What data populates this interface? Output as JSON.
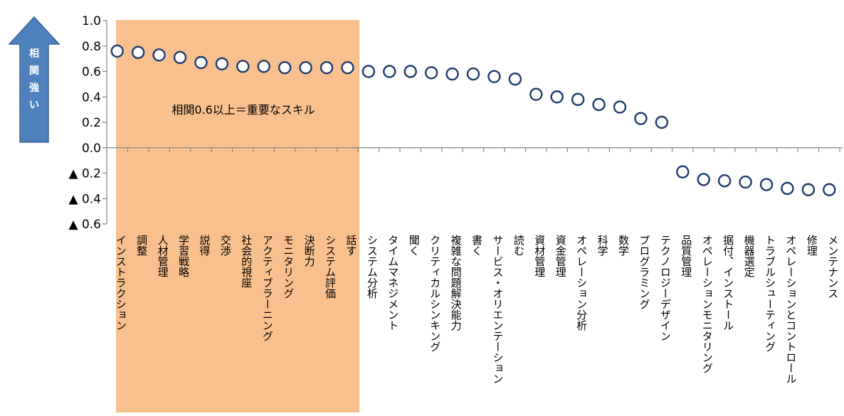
{
  "chart_data": {
    "type": "scatter",
    "title": "",
    "xlabel": "",
    "ylabel": "",
    "ylim": [
      -0.6,
      1.0
    ],
    "yticks": [
      {
        "value": 1.0,
        "label": "1.0"
      },
      {
        "value": 0.8,
        "label": "0.8"
      },
      {
        "value": 0.6,
        "label": "0.6"
      },
      {
        "value": 0.4,
        "label": "0.4"
      },
      {
        "value": 0.2,
        "label": "0.2"
      },
      {
        "value": 0.0,
        "label": "0.0"
      },
      {
        "value": -0.2,
        "label": "▲ 0.2"
      },
      {
        "value": -0.4,
        "label": "▲ 0.4"
      },
      {
        "value": -0.6,
        "label": "▲ 0.6"
      }
    ],
    "categories": [
      "インストラクション",
      "調整",
      "人材管理",
      "学習戦略",
      "説得",
      "交渉",
      "社会的視座",
      "アクティブラーニング",
      "モニタリング",
      "決断力",
      "システム評価",
      "話す",
      "システム分析",
      "タイムマネジメント",
      "聞く",
      "クリティカルシンキング",
      "複雑な問題解決能力",
      "書く",
      "サービス・オリエンテーション",
      "読む",
      "資材管理",
      "資金管理",
      "オペレーション分析",
      "科学",
      "数学",
      "プログラミング",
      "テクノロジーデザイン",
      "品質管理",
      "オペレーションモニタリング",
      "据付、インストール",
      "機器選定",
      "トラブルシューティング",
      "オペレーションとコントロール",
      "修理",
      "メンテナンス"
    ],
    "values": [
      0.76,
      0.75,
      0.73,
      0.71,
      0.67,
      0.66,
      0.64,
      0.64,
      0.63,
      0.63,
      0.63,
      0.63,
      0.6,
      0.6,
      0.6,
      0.59,
      0.58,
      0.58,
      0.56,
      0.54,
      0.42,
      0.4,
      0.38,
      0.34,
      0.32,
      0.23,
      0.2,
      -0.19,
      -0.25,
      -0.26,
      -0.27,
      -0.29,
      -0.32,
      -0.33,
      -0.33
    ],
    "highlight": {
      "from": 0,
      "to": 11,
      "color": "#f9c08f",
      "label": "相関0.6以上＝重要なスキル"
    },
    "marker": {
      "color": "#1f3a6e",
      "fill": "#ffffff"
    },
    "arrow": {
      "label": "相関強い",
      "color": "#4f81bd"
    },
    "grid": false
  }
}
